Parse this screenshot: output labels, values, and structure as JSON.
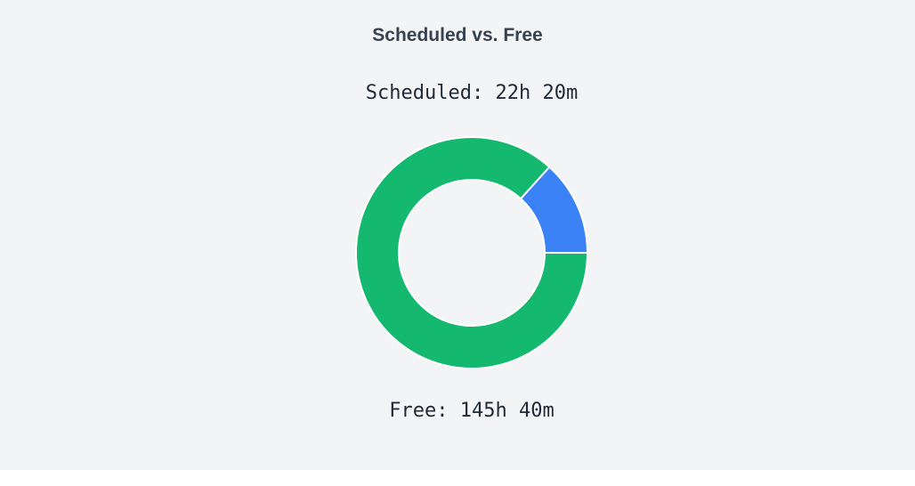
{
  "chart_data": {
    "type": "pie",
    "title": "Scheduled vs. Free",
    "categories": [
      "Scheduled",
      "Free"
    ],
    "values": [
      22.333,
      145.667
    ],
    "labels": [
      "Scheduled: 22h 20m",
      "Free: 145h 40m"
    ],
    "colors": [
      "#3b82f6",
      "#14b96f"
    ],
    "donut": true,
    "legend": "none"
  }
}
